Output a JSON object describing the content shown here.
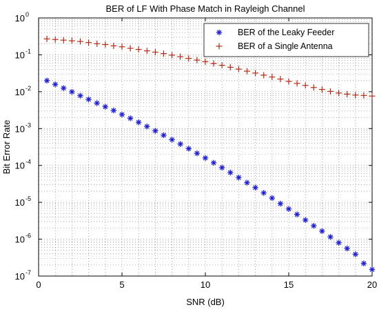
{
  "chart_data": {
    "type": "scatter",
    "title": "BER  of LF With Phase Match in Rayleigh Channel",
    "xlabel": "SNR (dB)",
    "ylabel": "Bit Error Rate",
    "xlim": [
      0,
      20
    ],
    "ylim": [
      1e-07,
      1
    ],
    "yscale": "log",
    "grid": true,
    "legend_position": "top-right",
    "x_ticks": [
      "0",
      "5",
      "10",
      "15",
      "20"
    ],
    "y_ticks": [
      {
        "base": "10",
        "exp": "0"
      },
      {
        "base": "10",
        "exp": "-1"
      },
      {
        "base": "10",
        "exp": "-2"
      },
      {
        "base": "10",
        "exp": "-3"
      },
      {
        "base": "10",
        "exp": "-4"
      },
      {
        "base": "10",
        "exp": "-5"
      },
      {
        "base": "10",
        "exp": "-6"
      },
      {
        "base": "10",
        "exp": "-7"
      }
    ],
    "x": [
      0.5,
      1.0,
      1.5,
      2.0,
      2.5,
      3.0,
      3.5,
      4.0,
      4.5,
      5.0,
      5.5,
      6.0,
      6.5,
      7.0,
      7.5,
      8.0,
      8.5,
      9.0,
      9.5,
      10.0,
      10.5,
      11.0,
      11.5,
      12.0,
      12.5,
      13.0,
      13.5,
      14.0,
      14.5,
      15.0,
      15.5,
      16.0,
      16.5,
      17.0,
      17.5,
      18.0,
      18.5,
      19.0,
      19.5,
      20.0
    ],
    "series": [
      {
        "name": "BER of the Leaky Feeder",
        "marker": "asterisk",
        "color": "#1f1fd0",
        "values": [
          0.02,
          0.0158,
          0.0125,
          0.0099,
          0.0078,
          0.0062,
          0.0049,
          0.0039,
          0.0031,
          0.0024,
          0.0019,
          0.00148,
          0.00114,
          0.00087,
          0.00066,
          0.0005,
          0.00038,
          0.000285,
          0.000213,
          0.000159,
          0.000118,
          8.7e-05,
          6.4e-05,
          4.7e-05,
          3.4e-05,
          2.5e-05,
          1.8e-05,
          1.3e-05,
          9.2e-06,
          6.6e-06,
          4.7e-06,
          3.3e-06,
          2.3e-06,
          1.65e-06,
          1.15e-06,
          8e-07,
          5.6e-07,
          3.9e-07,
          2.2e-07,
          1.5e-07
        ]
      },
      {
        "name": "BER of a Single Antenna",
        "marker": "plus",
        "color": "#b22a14",
        "values": [
          0.27,
          0.26,
          0.25,
          0.24,
          0.23,
          0.215,
          0.2,
          0.19,
          0.175,
          0.165,
          0.15,
          0.14,
          0.128,
          0.118,
          0.108,
          0.098,
          0.089,
          0.08,
          0.072,
          0.065,
          0.058,
          0.052,
          0.046,
          0.041,
          0.036,
          0.032,
          0.028,
          0.025,
          0.022,
          0.019,
          0.0168,
          0.0148,
          0.013,
          0.0115,
          0.0102,
          0.0092,
          0.0086,
          0.0081,
          0.0079,
          0.0076
        ]
      }
    ]
  }
}
